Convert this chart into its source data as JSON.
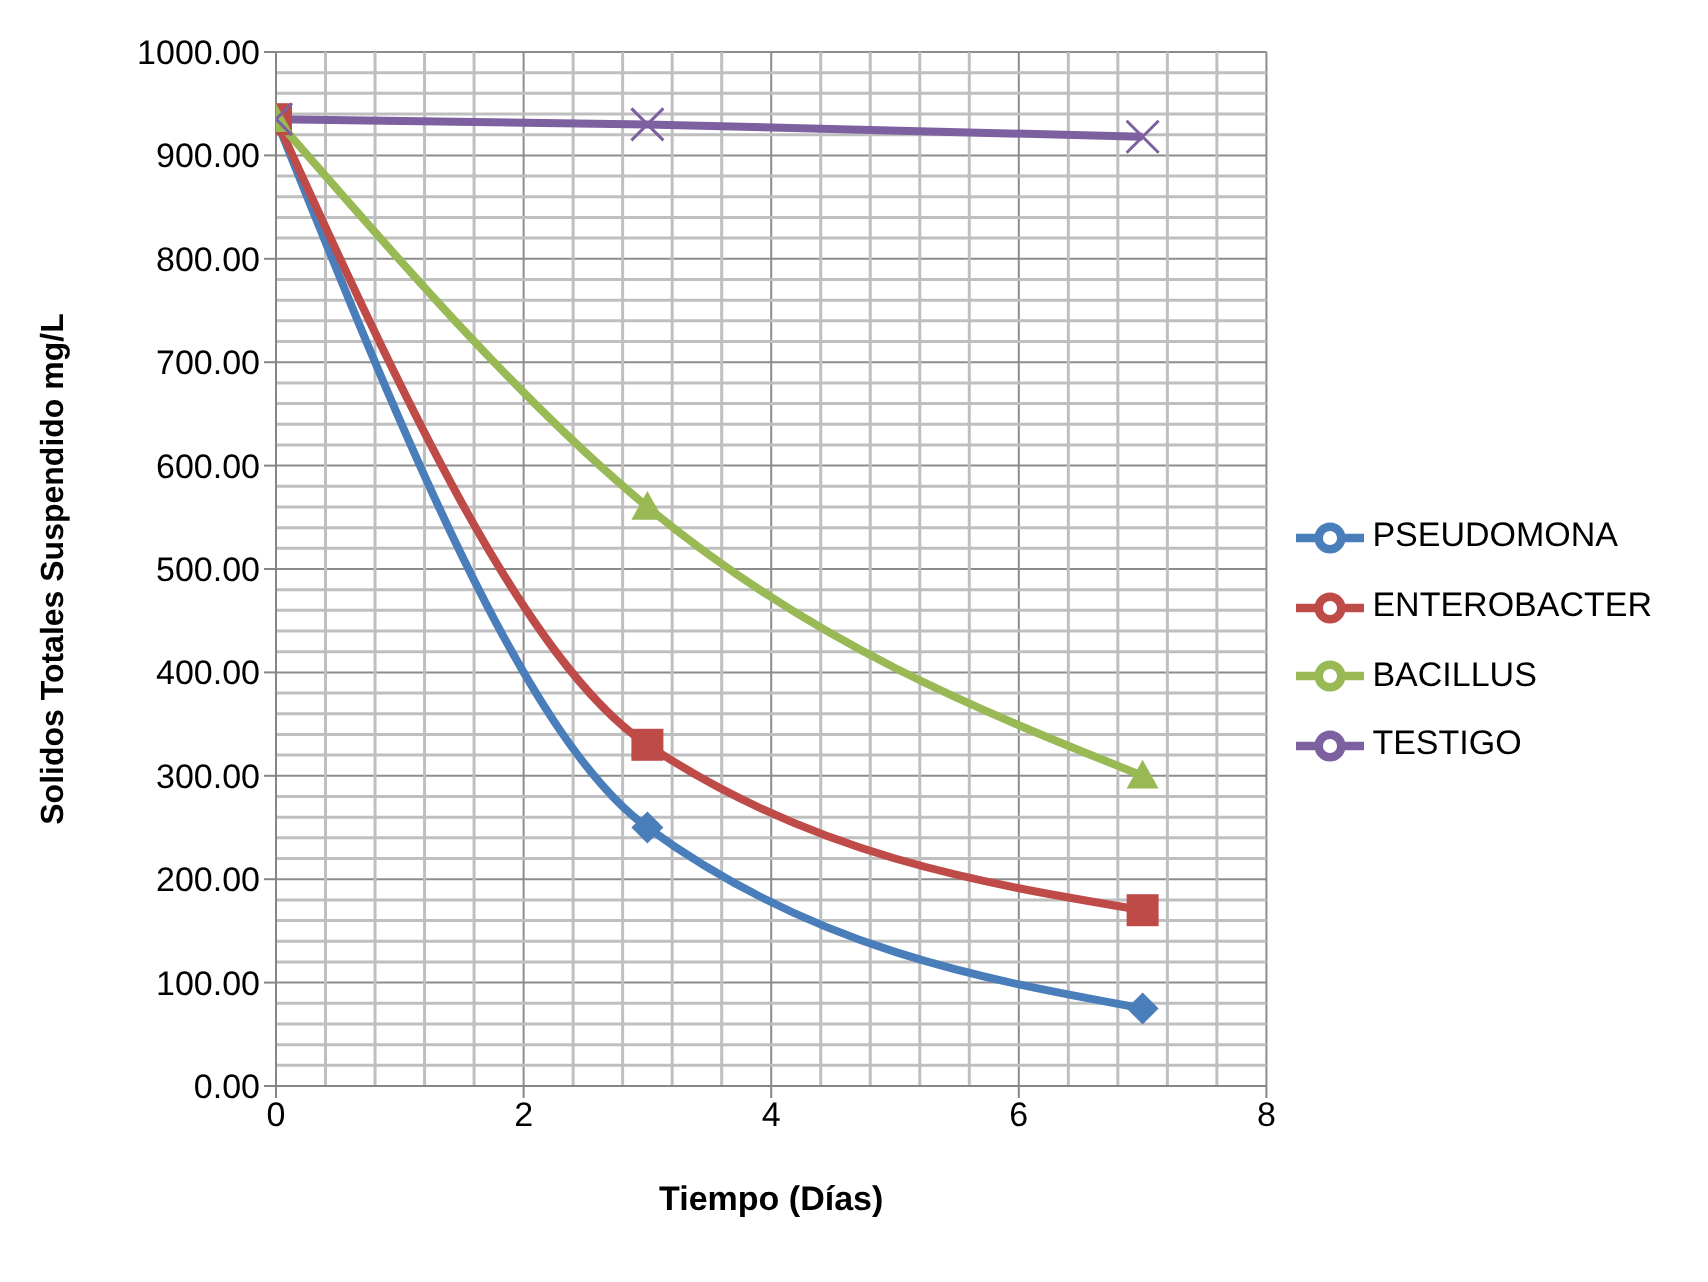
{
  "chart_data": {
    "type": "line",
    "xlabel": "Tiempo (Días)",
    "ylabel": "Solidos Totales Suspendido mg/L",
    "xlim": [
      0,
      8
    ],
    "xticks": [
      0,
      2,
      4,
      6,
      8
    ],
    "ylim": [
      0,
      1000
    ],
    "yticks": [
      {
        "value": 0,
        "label": "0.00"
      },
      {
        "value": 100,
        "label": "100.00"
      },
      {
        "value": 200,
        "label": "200.00"
      },
      {
        "value": 300,
        "label": "300.00"
      },
      {
        "value": 400,
        "label": "400.00"
      },
      {
        "value": 500,
        "label": "500.00"
      },
      {
        "value": 600,
        "label": "600.00"
      },
      {
        "value": 700,
        "label": "700.00"
      },
      {
        "value": 800,
        "label": "800.00"
      },
      {
        "value": 900,
        "label": "900.00"
      },
      {
        "value": 1000,
        "label": "1000.00"
      }
    ],
    "grid": true,
    "legend": "right",
    "x": [
      0,
      3,
      7
    ],
    "series": [
      {
        "name": "PSEUDOMONA",
        "color": "#4a7ebb",
        "marker": "diamond",
        "values": [
          935,
          250,
          75
        ]
      },
      {
        "name": "ENTEROBACTER",
        "color": "#be4b48",
        "marker": "square",
        "values": [
          935,
          330,
          170
        ]
      },
      {
        "name": "BACILLUS",
        "color": "#98b954",
        "marker": "triangle",
        "values": [
          935,
          560,
          300
        ]
      },
      {
        "name": "TESTIGO",
        "color": "#7d60a0",
        "marker": "cross",
        "values": [
          935,
          930,
          918
        ]
      }
    ]
  }
}
